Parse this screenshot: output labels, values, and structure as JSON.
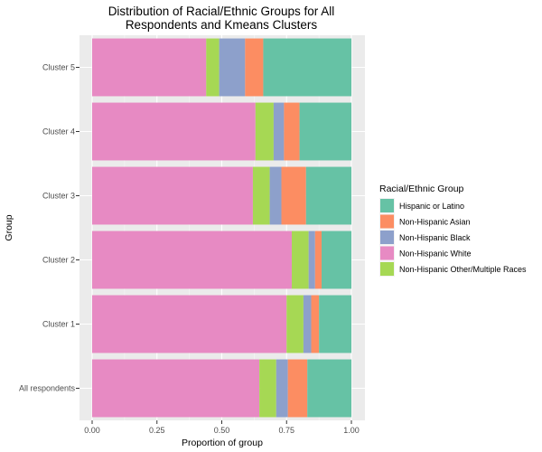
{
  "chart_data": {
    "type": "bar",
    "orientation": "horizontal",
    "stacked": true,
    "title_lines": [
      "Distribution of Racial/Ethnic Groups for All",
      "Respondents and Kmeans Clusters"
    ],
    "xlabel": "Proportion of group",
    "ylabel": "Group",
    "xlim": [
      0,
      1
    ],
    "x_ticks": [
      "0.00",
      "0.25",
      "0.50",
      "0.75",
      "1.00"
    ],
    "x_tick_values": [
      0,
      0.25,
      0.5,
      0.75,
      1
    ],
    "grid": true,
    "legend_position": "right",
    "legend_title": "Racial/Ethnic Group",
    "categories": [
      "Cluster 5",
      "Cluster 4",
      "Cluster 3",
      "Cluster 2",
      "Cluster 1",
      "All respondents"
    ],
    "series": [
      {
        "name": "Non-Hispanic White",
        "color": "#e78ac3",
        "values": [
          0.44,
          0.63,
          0.62,
          0.77,
          0.75,
          0.645
        ]
      },
      {
        "name": "Non-Hispanic Other/Multiple Races",
        "color": "#a6d854",
        "values": [
          0.05,
          0.07,
          0.065,
          0.065,
          0.065,
          0.065
        ]
      },
      {
        "name": "Non-Hispanic Black",
        "color": "#8da0cb",
        "values": [
          0.1,
          0.04,
          0.045,
          0.025,
          0.03,
          0.045
        ]
      },
      {
        "name": "Non-Hispanic Asian",
        "color": "#fc8d62",
        "values": [
          0.07,
          0.06,
          0.095,
          0.025,
          0.03,
          0.075
        ]
      },
      {
        "name": "Hispanic or Latino",
        "color": "#66c2a5",
        "values": [
          0.34,
          0.2,
          0.175,
          0.115,
          0.125,
          0.17
        ]
      }
    ],
    "legend_order": [
      "Hispanic or Latino",
      "Non-Hispanic Asian",
      "Non-Hispanic Black",
      "Non-Hispanic White",
      "Non-Hispanic Other/Multiple Races"
    ]
  }
}
